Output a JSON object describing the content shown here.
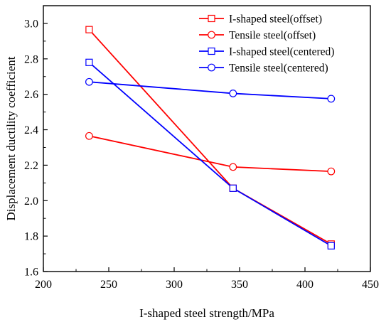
{
  "chart_data": {
    "type": "line",
    "xlabel": "I-shaped steel strength/MPa",
    "ylabel": "Displacement ductility coefficient",
    "xlim": [
      200,
      450
    ],
    "ylim": [
      1.6,
      3.1
    ],
    "xticks": [
      "200",
      "250",
      "300",
      "350",
      "400",
      "450"
    ],
    "yticks": [
      "1.6",
      "1.8",
      "2.0",
      "2.2",
      "2.4",
      "2.6",
      "2.8",
      "3.0"
    ],
    "grid": false,
    "legend_position": "top-right",
    "x": [
      235,
      345,
      420
    ],
    "series": [
      {
        "name": "I-shaped steel(offset)",
        "values": [
          2.965,
          2.07,
          1.755
        ],
        "color": "#ff0000",
        "marker": "square"
      },
      {
        "name": "Tensile steel(offset)",
        "values": [
          2.365,
          2.19,
          2.165
        ],
        "color": "#ff0000",
        "marker": "circle"
      },
      {
        "name": "I-shaped steel(centered)",
        "values": [
          2.78,
          2.07,
          1.745
        ],
        "color": "#0000ff",
        "marker": "square"
      },
      {
        "name": "Tensile steel(centered)",
        "values": [
          2.67,
          2.605,
          2.575
        ],
        "color": "#0000ff",
        "marker": "circle"
      }
    ]
  }
}
